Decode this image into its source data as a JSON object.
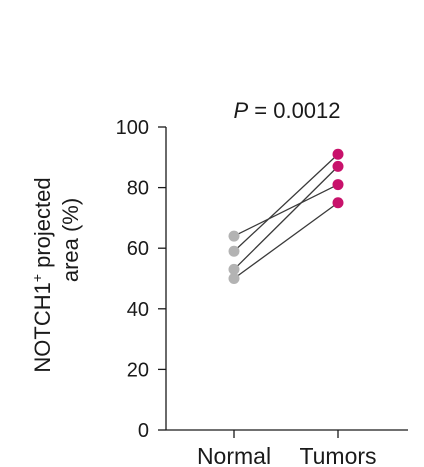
{
  "chart_data": {
    "type": "scatter",
    "paired": true,
    "categories": [
      "Normal",
      "Tumors"
    ],
    "ylabel_lines": [
      "NOTCH1",
      "+",
      " projected",
      "area (%)"
    ],
    "ylim": [
      0,
      100
    ],
    "yticks": [
      0,
      20,
      40,
      60,
      80,
      100
    ],
    "annotation": {
      "symbol": "P",
      "text": " = 0.0012"
    },
    "colors": {
      "Normal": "#b3b3b3",
      "Tumors": "#c8126b"
    },
    "pairs": [
      {
        "normal": 64,
        "tumor": 81
      },
      {
        "normal": 59,
        "tumor": 91
      },
      {
        "normal": 53,
        "tumor": 87
      },
      {
        "normal": 50,
        "tumor": 75
      }
    ],
    "grid": false,
    "legend": "none"
  }
}
